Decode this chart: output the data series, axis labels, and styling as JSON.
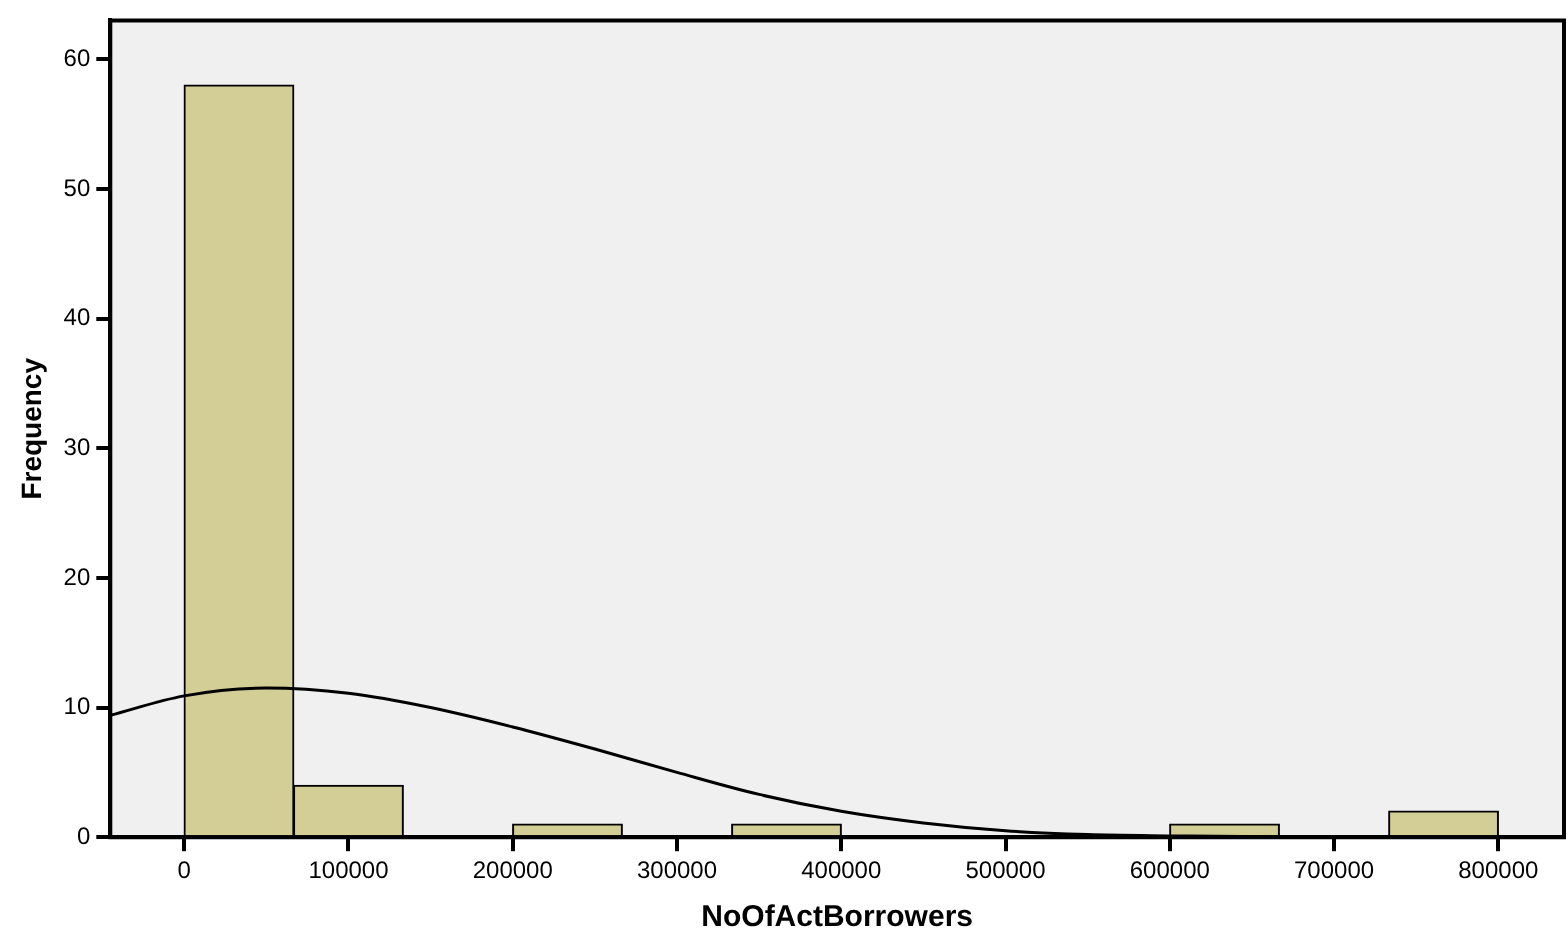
{
  "chart_data": {
    "type": "histogram",
    "xlabel": "NoOfActBorrowers",
    "ylabel": "Frequency",
    "bins": [
      0,
      66667,
      133333,
      200000,
      266667,
      333333,
      400000,
      466667,
      533333,
      600000,
      666667,
      733333,
      800000
    ],
    "values": [
      58,
      4,
      0,
      1,
      0,
      1,
      0,
      0,
      0,
      1,
      0,
      2
    ],
    "color": "#d3cd96",
    "series": [
      {
        "type": "line",
        "color": "#000000",
        "x": [
          -45000,
          0,
          50000,
          100000,
          150000,
          200000,
          250000,
          300000,
          350000,
          400000,
          450000,
          500000,
          550000,
          600000,
          700000,
          840000
        ],
        "values": [
          9.4,
          10.9,
          11.5,
          11.1,
          10,
          8.5,
          6.8,
          5,
          3.3,
          2,
          1.1,
          0.5,
          0.2,
          0.1,
          0,
          0
        ]
      }
    ],
    "xlim": [
      -45000,
      840000
    ],
    "ylim": [
      0,
      63
    ],
    "xticks": [
      0,
      100000,
      200000,
      300000,
      400000,
      500000,
      600000,
      700000,
      800000
    ],
    "yticks": [
      0,
      10,
      20,
      30,
      40,
      50,
      60
    ],
    "grid": false,
    "legend": false,
    "marker": "none",
    "line_style": "solid"
  }
}
